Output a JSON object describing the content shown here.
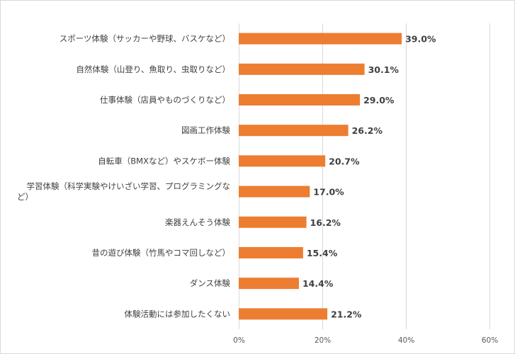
{
  "chart_data": {
    "type": "bar",
    "orientation": "horizontal",
    "categories": [
      "スポーツ体験（サッカーや野球、バスケなど）",
      "自然体験（山登り、魚取り、虫取りなど）",
      "仕事体験（店員やものづくりなど）",
      "図画工作体験",
      "自転車（BMXなど）やスケボー体験",
      "学習体験（科学実験やけいざい学習、プログラミングなど）",
      "楽器えんそう体験",
      "昔の遊び体験（竹馬やコマ回しなど）",
      "ダンス体験",
      "体験活動には参加したくない"
    ],
    "category_lines": [
      [
        "スポーツ体験（サッカーや野球、バスケなど）"
      ],
      [
        "自然体験（山登り、魚取り、虫取りなど）"
      ],
      [
        "仕事体験（店員やものづくりなど）"
      ],
      [
        "図画工作体験"
      ],
      [
        "自転車（BMXなど）やスケボー体験"
      ],
      [
        "学習体験（科学実験やけいざい学習、プログラミングな",
        "ど）"
      ],
      [
        "楽器えんそう体験"
      ],
      [
        "昔の遊び体験（竹馬やコマ回しなど）"
      ],
      [
        "ダンス体験"
      ],
      [
        "体験活動には参加したくない"
      ]
    ],
    "values": [
      39.0,
      30.1,
      29.0,
      26.2,
      20.7,
      17.0,
      16.2,
      15.4,
      14.4,
      21.2
    ],
    "value_labels": [
      "39.0%",
      "30.1%",
      "29.0%",
      "26.2%",
      "20.7%",
      "17.0%",
      "16.2%",
      "15.4%",
      "14.4%",
      "21.2%"
    ],
    "xlim": [
      0,
      60
    ],
    "ticks": [
      0,
      20,
      40,
      60
    ],
    "tick_labels": [
      "0%",
      "20%",
      "40%",
      "60%"
    ],
    "grid": true,
    "bar_color": "#ed7d31",
    "grid_color": "#d9d9d9",
    "title": "",
    "xlabel": "",
    "ylabel": ""
  }
}
